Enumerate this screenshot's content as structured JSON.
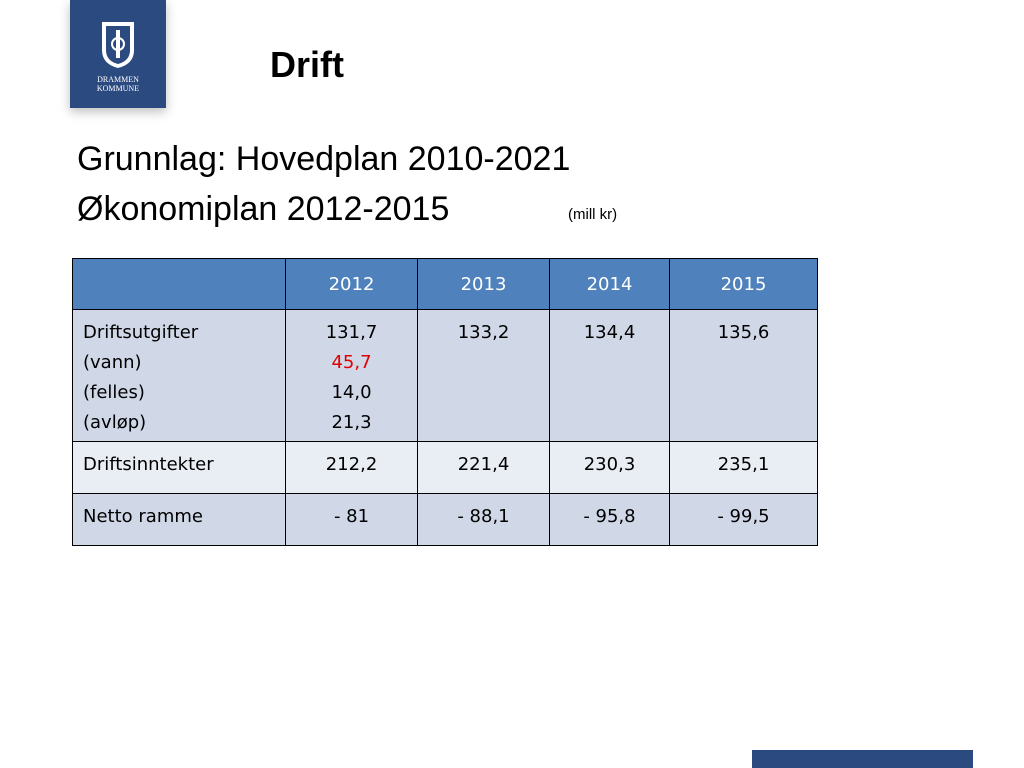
{
  "header": {
    "title": "Drift",
    "logo": [
      "DRAMMEN",
      "KOMMUNE"
    ]
  },
  "subtitle": [
    "Grunnlag: Hovedplan 2010-2021",
    "Økonomiplan 2012-2015"
  ],
  "unit": "(mill kr)",
  "table": {
    "columns": [
      "2012",
      "2013",
      "2014",
      "2015"
    ],
    "rows": [
      {
        "label": [
          "Driftsutgifter",
          "(vann)",
          "(felles)",
          "(avløp)"
        ],
        "cells": [
          [
            "131,7",
            "45,7",
            "14,0",
            "21,3"
          ],
          [
            "133,2"
          ],
          [
            "134,4"
          ],
          [
            "135,6"
          ]
        ]
      },
      {
        "label": [
          "Driftsinntekter"
        ],
        "cells": [
          [
            "212,2"
          ],
          [
            "221,4"
          ],
          [
            "230,3"
          ],
          [
            "235,1"
          ]
        ]
      },
      {
        "label": [
          "Netto ramme"
        ],
        "cells": [
          [
            "- 81"
          ],
          [
            "- 88,1"
          ],
          [
            "- 95,8"
          ],
          [
            "- 99,5"
          ]
        ]
      }
    ]
  }
}
